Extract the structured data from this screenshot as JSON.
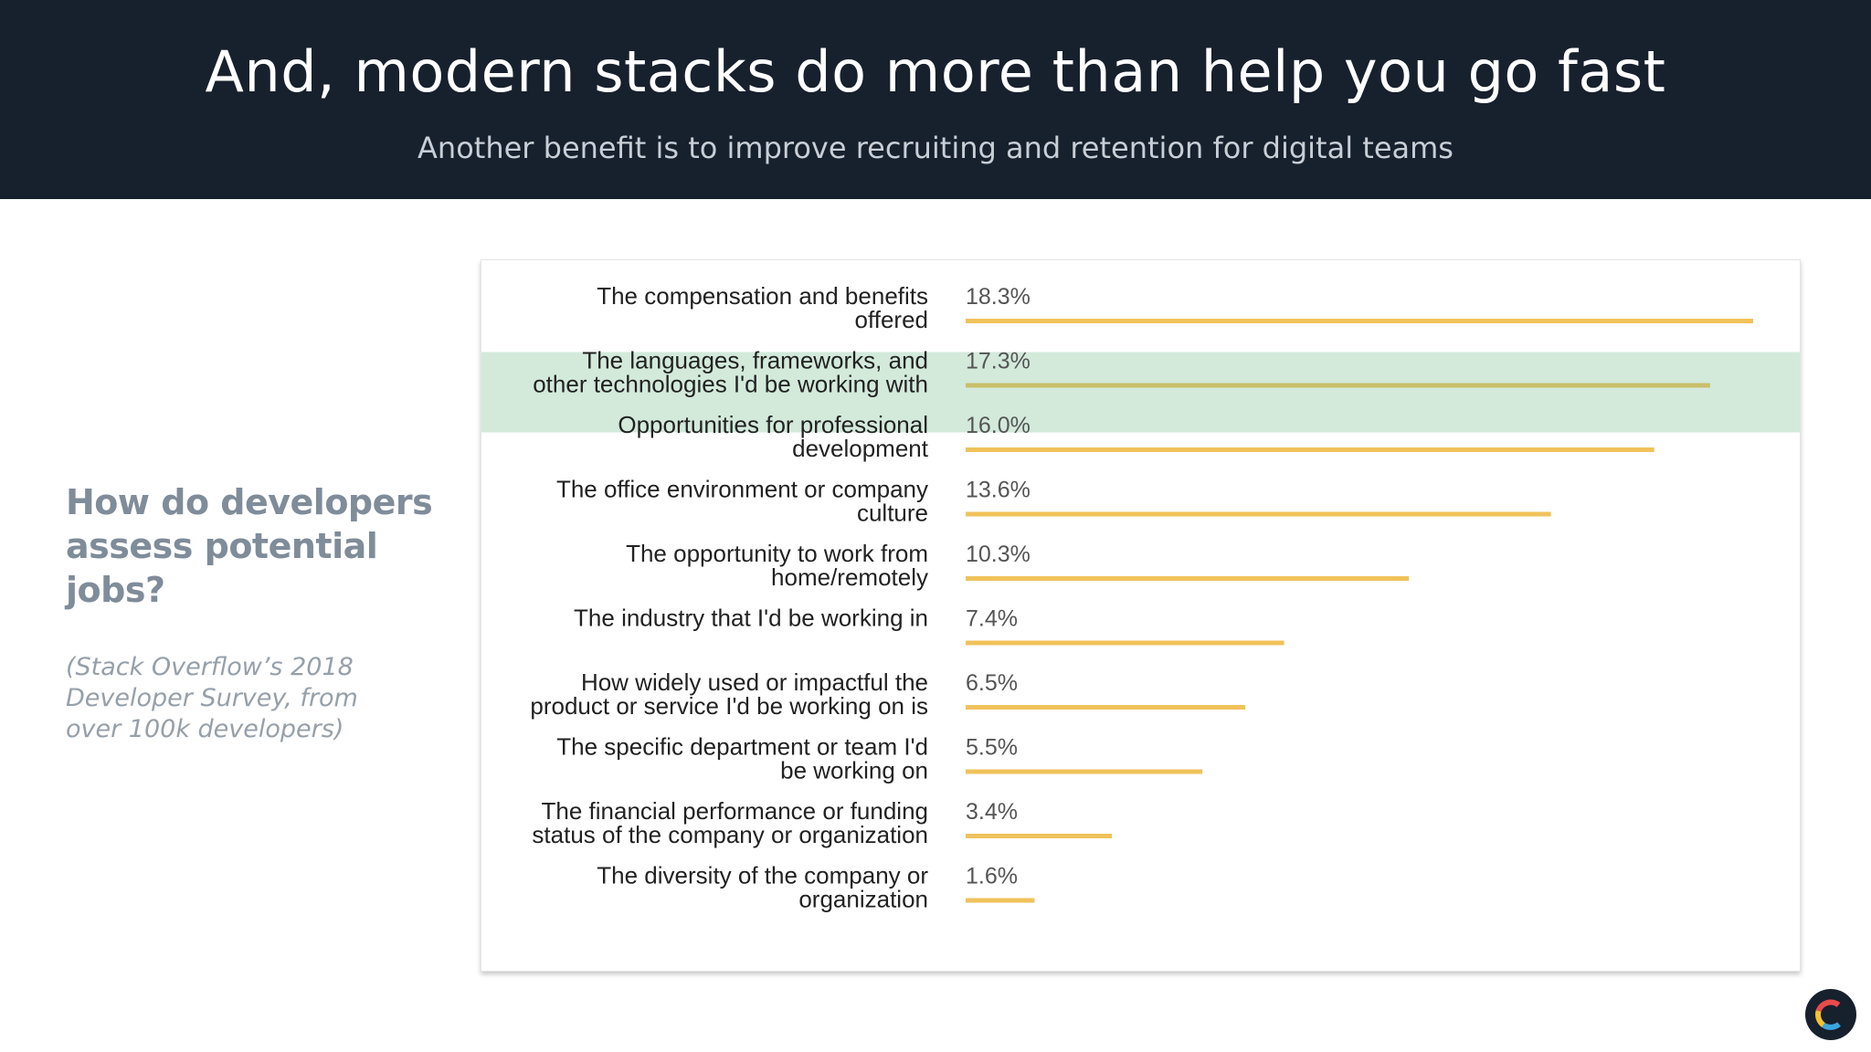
{
  "header": {
    "title": "And, modern stacks do more than help you go fast",
    "subtitle": "Another benefit is to improve recruiting and retention for digital teams"
  },
  "sidebar": {
    "question": "How do developers assess potential jobs?",
    "source": "(Stack Overflow’s 2018 Developer Survey, from over 100k developers)"
  },
  "chart_data": {
    "type": "bar",
    "orientation": "horizontal",
    "categories": [
      [
        "The compensation and benefits",
        "offered"
      ],
      [
        "The languages, frameworks, and",
        "other technologies I'd be working with"
      ],
      [
        "Opportunities for professional",
        "development"
      ],
      [
        "The office environment or company",
        "culture"
      ],
      [
        "The opportunity to work from",
        "home/remotely"
      ],
      [
        "The industry that I'd be working in"
      ],
      [
        "How widely used or impactful the",
        "product or service I'd be working on is"
      ],
      [
        "The specific department or team I'd",
        "be working on"
      ],
      [
        "The financial performance or funding",
        "status of the company or organization"
      ],
      [
        "The diversity of the company or",
        "organization"
      ]
    ],
    "values": [
      18.3,
      17.3,
      16.0,
      13.6,
      10.3,
      7.4,
      6.5,
      5.5,
      3.4,
      1.6
    ],
    "value_labels": [
      "18.3%",
      "17.3%",
      "16.0%",
      "13.6%",
      "10.3%",
      "7.4%",
      "6.5%",
      "5.5%",
      "3.4%",
      "1.6%"
    ],
    "highlighted_index": 1,
    "bar_color": "#f0c25a",
    "highlight_bar_color": "#c9bf6a",
    "highlight_color": "#d3eadb",
    "value_axis_max": 18.3
  },
  "colors": {
    "header_bg": "#17202d",
    "accent_gray": "#7f8c99"
  },
  "logo": {
    "icon": "c-ring-logo-icon"
  }
}
